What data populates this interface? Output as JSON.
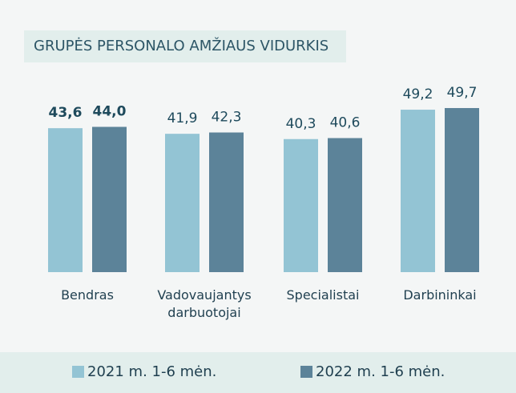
{
  "chart_data": {
    "type": "bar",
    "title": "GRUPĖS PERSONALO AMŽIAUS VIDURKIS",
    "categories": [
      "Bendras",
      "Vadovaujantys darbuotojai",
      "Specialistai",
      "Darbininkai"
    ],
    "series": [
      {
        "name": "2021 m. 1-6 mėn.",
        "color": "#93c4d4",
        "values": [
          43.6,
          41.9,
          40.3,
          49.2
        ],
        "value_labels": [
          "43,6",
          "41,9",
          "40,3",
          "49,2"
        ]
      },
      {
        "name": "2022 m. 1-6 mėn.",
        "color": "#5c8399",
        "values": [
          44.0,
          42.3,
          40.6,
          49.7
        ],
        "value_labels": [
          "44,0",
          "42,3",
          "40,6",
          "49,7"
        ]
      }
    ],
    "bold_category_index": 0
  }
}
